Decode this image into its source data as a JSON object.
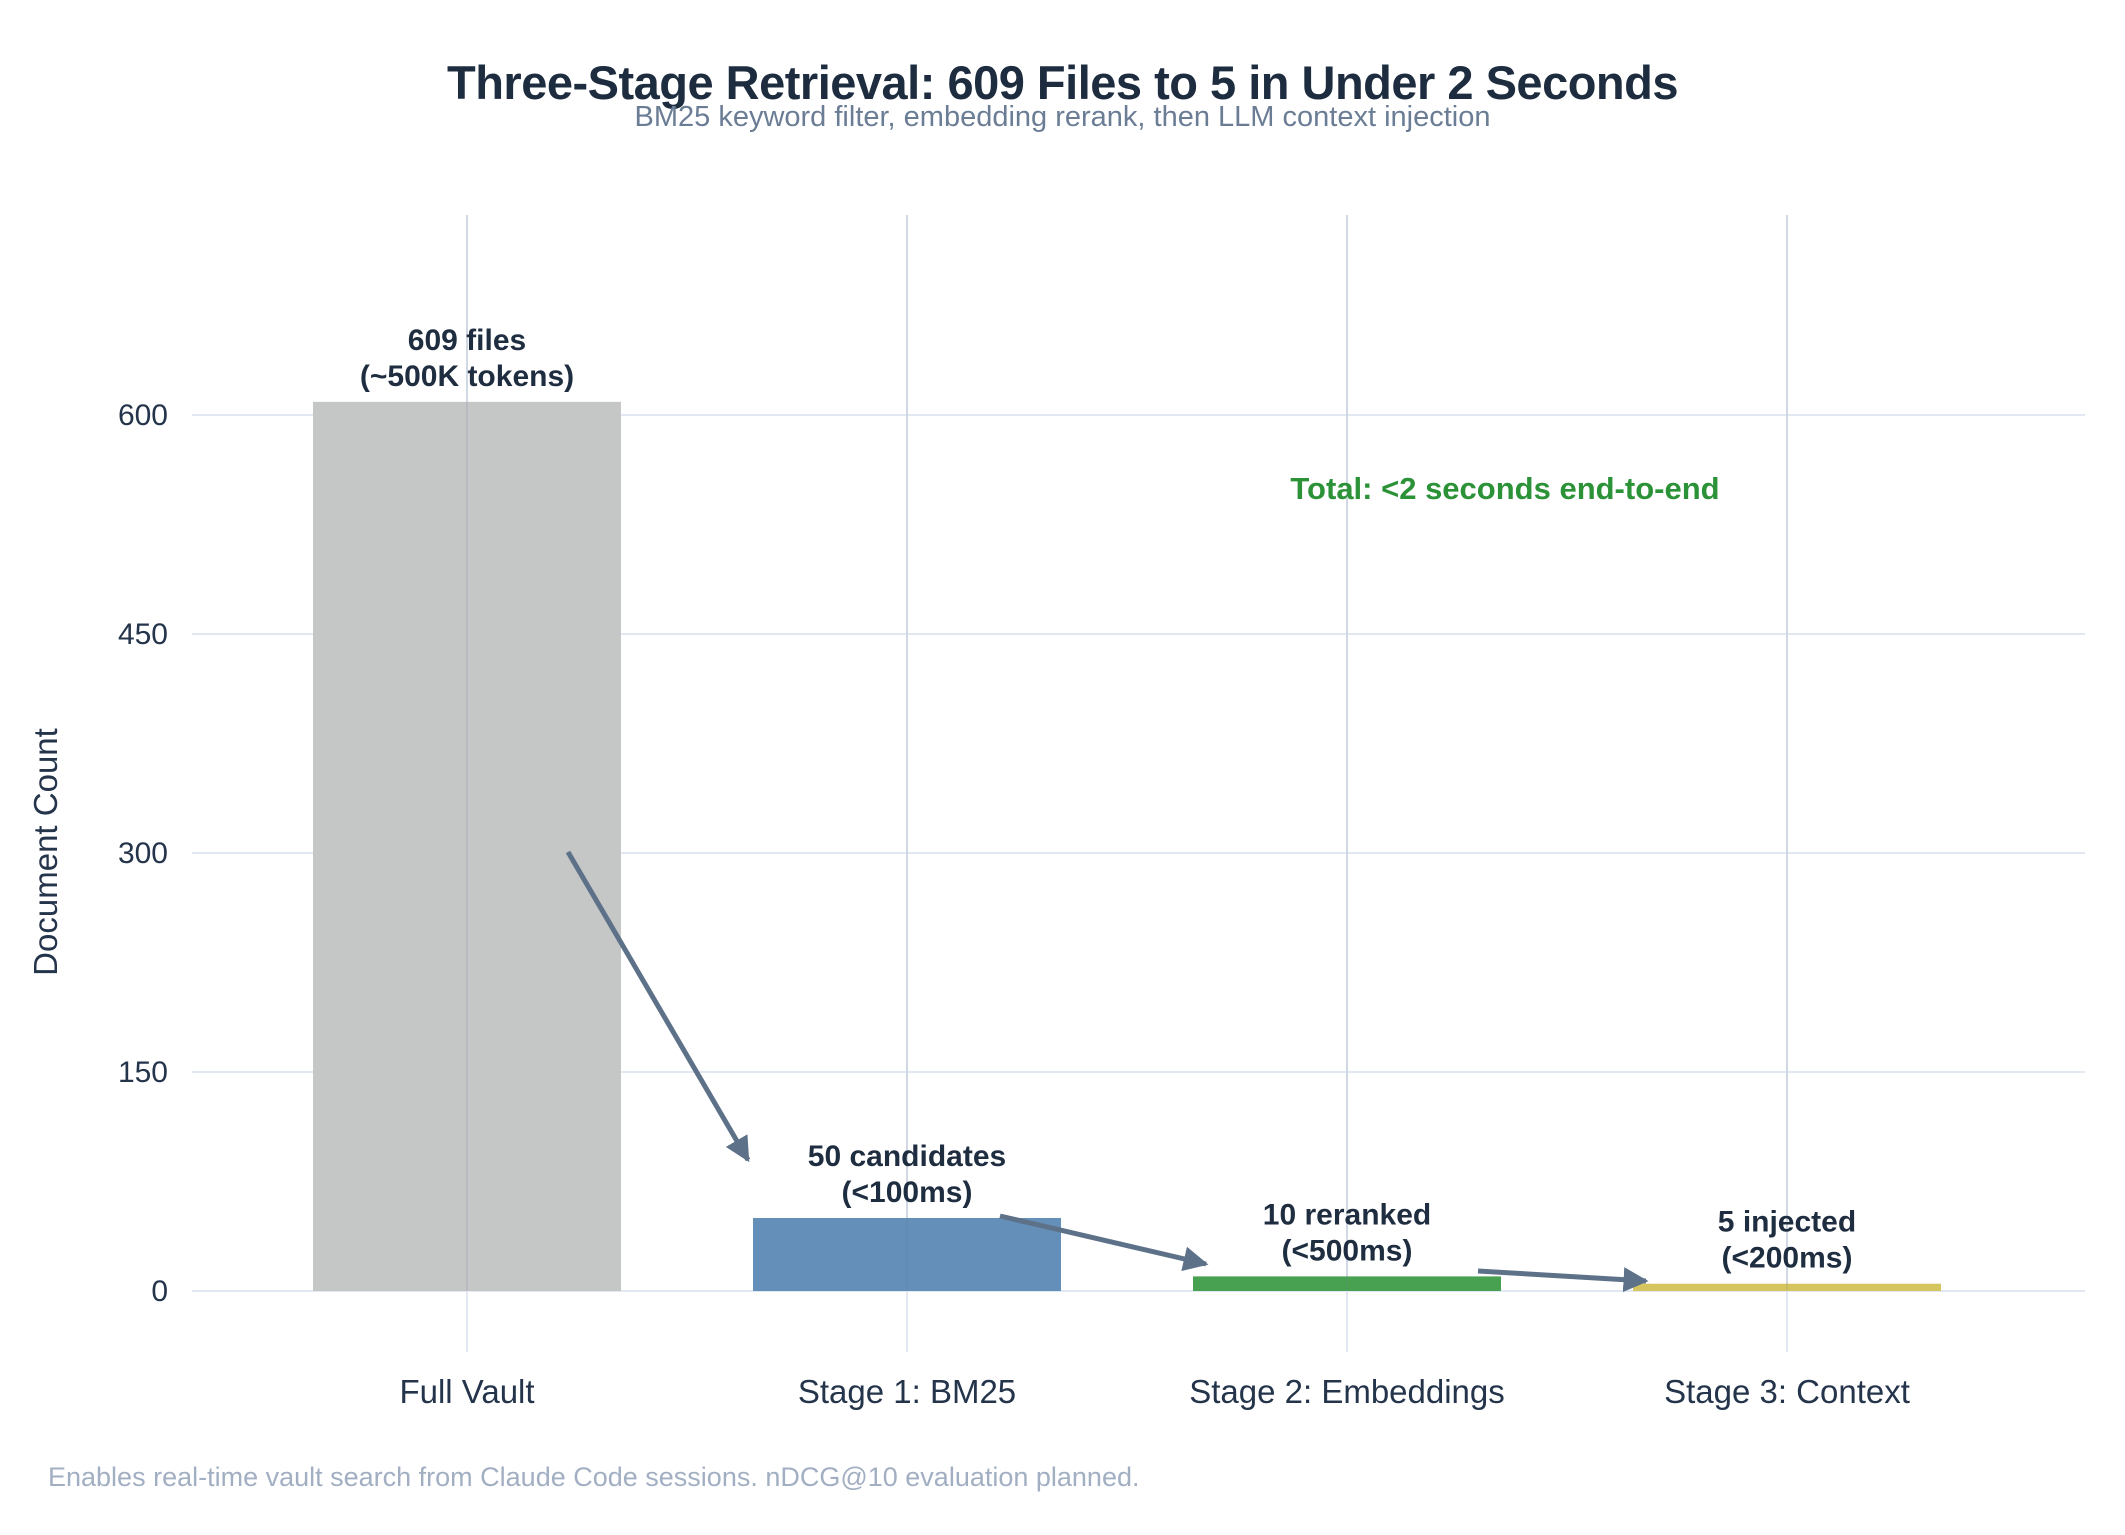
{
  "chart_data": {
    "type": "bar",
    "title": "Three-Stage Retrieval: 609 Files to 5 in Under 2 Seconds",
    "subtitle": "BM25 keyword filter, embedding rerank, then LLM context injection",
    "ylabel": "Document Count",
    "xlabel": "",
    "categories": [
      "Full Vault",
      "Stage 1: BM25",
      "Stage 2: Embeddings",
      "Stage 3: Context"
    ],
    "values": [
      609,
      50,
      10,
      5
    ],
    "bar_colors": [
      "#c5c6c6",
      "#648fb9",
      "#48a151",
      "#d4c55f"
    ],
    "bar_annotations": [
      [
        "609 files",
        "(~500K tokens)"
      ],
      [
        "50 candidates",
        "(<100ms)"
      ],
      [
        "10 reranked",
        "(<500ms)"
      ],
      [
        "5 injected",
        "(<200ms)"
      ]
    ],
    "yticks": [
      0,
      150,
      300,
      450,
      600
    ],
    "ylim": [
      0,
      640
    ],
    "grid": true,
    "legend": false,
    "flow_arrows": [
      {
        "from": "Full Vault",
        "to": "Stage 1: BM25"
      },
      {
        "from": "Stage 1: BM25",
        "to": "Stage 2: Embeddings"
      },
      {
        "from": "Stage 2: Embeddings",
        "to": "Stage 3: Context"
      }
    ]
  },
  "annotations": {
    "total": {
      "text": "Total: <2 seconds end-to-end",
      "color": "#2b9237"
    }
  },
  "footer": "Enables real-time vault search from Claude Code sessions. nDCG@10 evaluation planned.",
  "colors": {
    "title": "#1e2c3f",
    "subtitle": "#6b7d95",
    "axis_text": "#24344b",
    "annotation_text": "#1f2d40",
    "grid": "#e2e8f1",
    "arrow": "#5d7189",
    "footer": "#a2afc3"
  }
}
